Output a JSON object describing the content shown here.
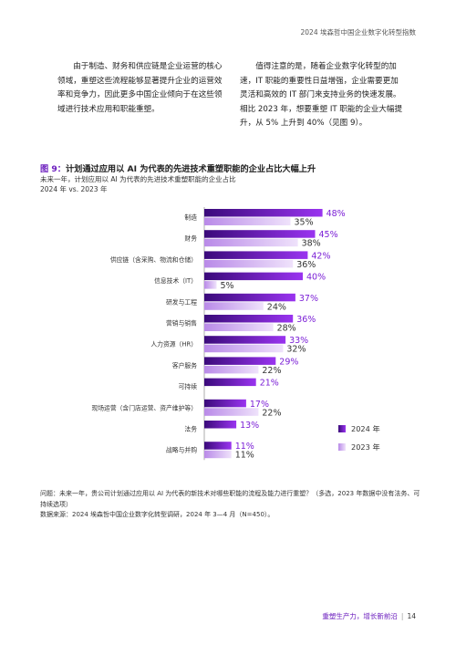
{
  "header": {
    "title": "2024 埃森哲中国企业数字化转型指数"
  },
  "body": {
    "left_paragraph": "由于制造、财务和供应链是企业运营的核心领域，重塑这些流程能够显著提升企业的运营效率和竞争力，因此更多中国企业倾向于在这些领域进行技术应用和职能重塑。",
    "right_paragraph": "值得注意的是，随着企业数字化转型的加速，IT 职能的重要性日益增强，企业需要更加灵活和高效的 IT 部门来支持业务的快速发展。相比 2023 年，想要重塑 IT 职能的企业大幅提升，从 5% 上升到 40%（见图 9）。"
  },
  "figure": {
    "number": "图 9：",
    "title": "计划通过应用以 AI 为代表的先进技术重塑职能的企业占比大幅上升",
    "subtitle_line1": "未来一年，计划应用以 AI 为代表的先进技术重塑职能的企业占比",
    "subtitle_line2": "2024 年 vs. 2023 年"
  },
  "chart_data": {
    "type": "bar",
    "orientation": "horizontal",
    "unit": "%",
    "xlim": [
      0,
      50
    ],
    "categories": [
      "制造",
      "财务",
      "供应链（含采购、物流和仓储）",
      "信息技术（IT）",
      "研发与工程",
      "营销与销售",
      "人力资源（HR）",
      "客户服务",
      "可持续",
      "现场运营（含门店运营、资产维护等）",
      "法务",
      "战略与并购"
    ],
    "series": [
      {
        "name": "2024 年",
        "color": "#7b1fd6",
        "values": [
          48,
          45,
          42,
          40,
          37,
          36,
          33,
          29,
          21,
          17,
          13,
          11
        ],
        "labels": [
          "48%",
          "45%",
          "42%",
          "40%",
          "37%",
          "36%",
          "33%",
          "29%",
          "21%",
          "17%",
          "13%",
          "11%"
        ]
      },
      {
        "name": "2023 年",
        "color": "#d3b4f4",
        "values": [
          35,
          38,
          36,
          5,
          24,
          28,
          32,
          22,
          null,
          22,
          null,
          11
        ],
        "labels": [
          "35%",
          "38%",
          "36%",
          "5%",
          "24%",
          "28%",
          "32%",
          "22%",
          "",
          "22%",
          "",
          "11%"
        ]
      }
    ],
    "legend_position": "bottom-right",
    "grid": false
  },
  "footnote": {
    "question": "问题：未来一年，贵公司计划通过应用以 AI 为代表的新技术对哪些职能的流程及能力进行重塑？（多选，2023 年数据中没有法务、可持续选项）",
    "source": "数据来源：2024 埃森哲中国企业数字化转型调研，2024 年 3—4 月（N=450）。"
  },
  "footer": {
    "tagline": "重塑生产力，增长新前沿",
    "page": "14"
  }
}
